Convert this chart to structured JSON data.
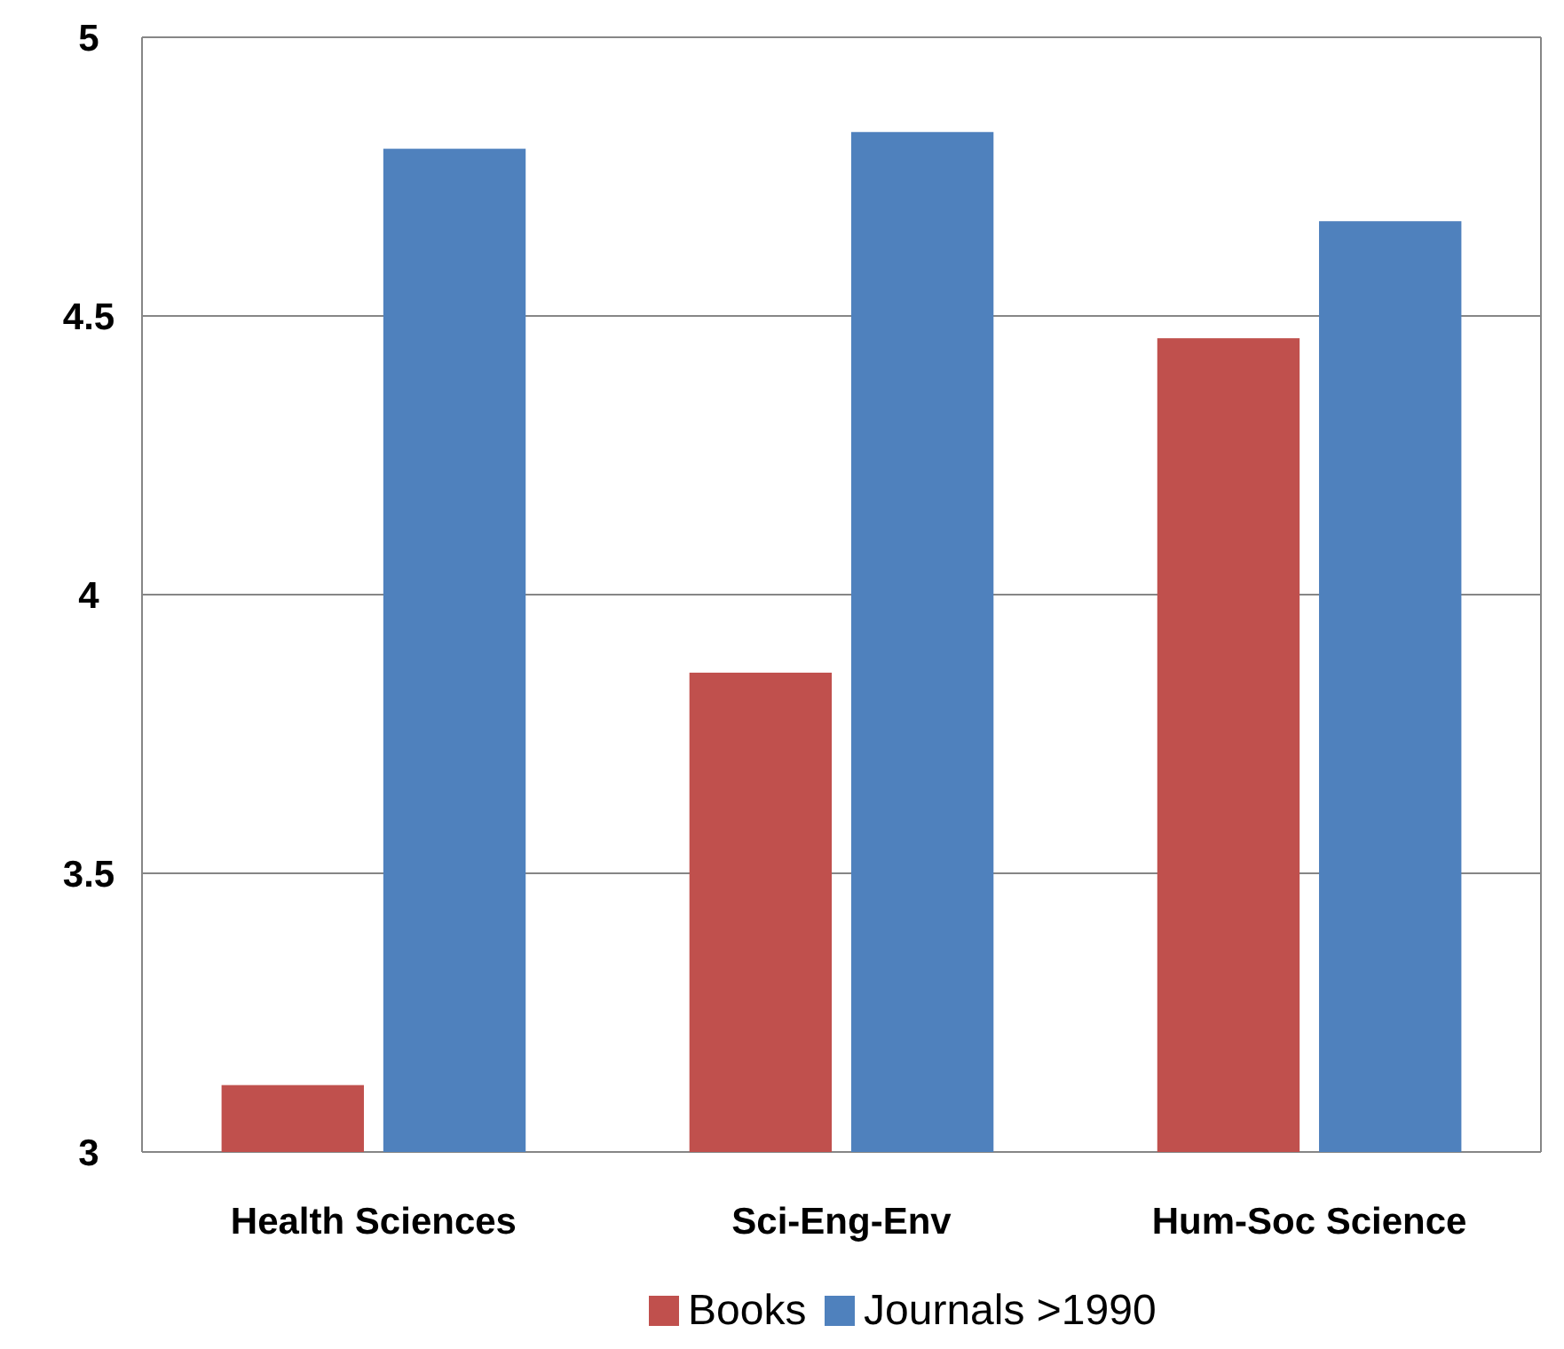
{
  "chart_data": {
    "type": "bar",
    "categories": [
      "Health Sciences",
      "Sci-Eng-Env",
      "Hum-Soc Science"
    ],
    "series": [
      {
        "name": "Books",
        "color": "#c0504d",
        "values": [
          3.12,
          3.86,
          4.46
        ]
      },
      {
        "name": "Journals >1990",
        "color": "#4f81bd",
        "values": [
          4.8,
          4.83,
          4.67
        ]
      }
    ],
    "ylim": [
      3,
      5
    ],
    "yticks": [
      3,
      3.5,
      4,
      4.5,
      5
    ],
    "grid": "y",
    "legend": "bottom"
  }
}
